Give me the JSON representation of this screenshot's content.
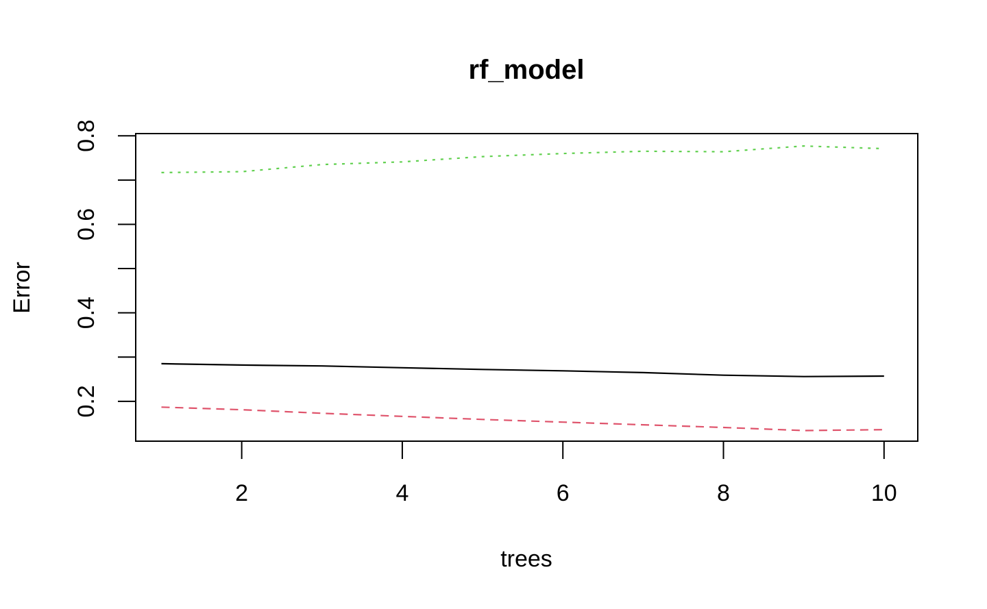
{
  "chart_data": {
    "type": "line",
    "title": "rf_model",
    "xlabel": "trees",
    "ylabel": "Error",
    "xlim": [
      0.68,
      10.42
    ],
    "ylim": [
      0.11,
      0.805
    ],
    "x_ticks": [
      2,
      4,
      6,
      8,
      10
    ],
    "x_tick_labels": [
      "2",
      "4",
      "6",
      "8",
      "10"
    ],
    "y_ticks": [
      0.2,
      0.3,
      0.4,
      0.5,
      0.6,
      0.7,
      0.8
    ],
    "y_tick_labels": [
      "0.2",
      "",
      "0.4",
      "",
      "0.6",
      "",
      "0.8"
    ],
    "grid": false,
    "x": [
      1,
      2,
      3,
      4,
      5,
      6,
      7,
      8,
      9,
      10
    ],
    "series": [
      {
        "values": [
          0.285,
          0.282,
          0.28,
          0.276,
          0.272,
          0.269,
          0.265,
          0.259,
          0.256,
          0.257
        ],
        "color": "#000000",
        "dash": "solid"
      },
      {
        "values": [
          0.187,
          0.181,
          0.173,
          0.166,
          0.159,
          0.153,
          0.147,
          0.141,
          0.134,
          0.136
        ],
        "color": "#DF536B",
        "dash": "dashed"
      },
      {
        "values": [
          0.717,
          0.719,
          0.735,
          0.741,
          0.753,
          0.76,
          0.765,
          0.764,
          0.777,
          0.771
        ],
        "color": "#61D04F",
        "dash": "dotted"
      }
    ]
  }
}
